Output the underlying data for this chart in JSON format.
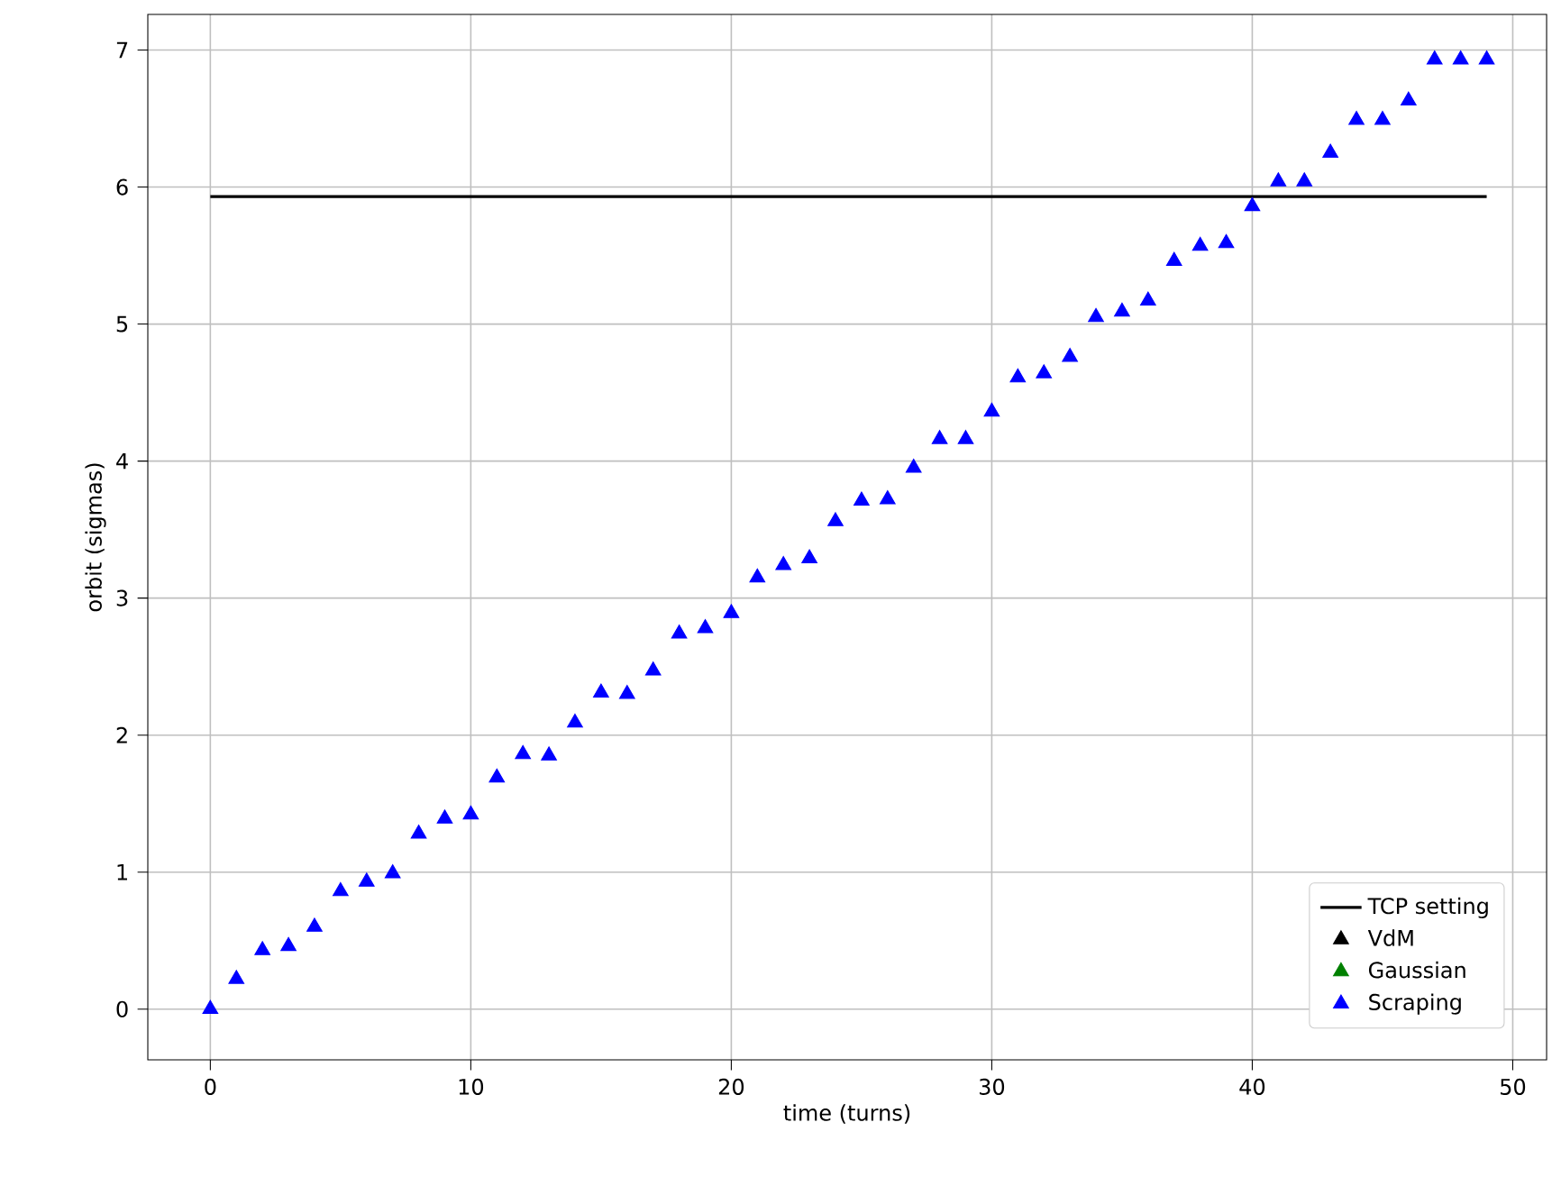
{
  "chart_data": {
    "type": "scatter",
    "xlabel": "time (turns)",
    "ylabel": "orbit (sigmas)",
    "x": [
      0,
      1,
      2,
      3,
      4,
      5,
      6,
      7,
      8,
      9,
      10,
      11,
      12,
      13,
      14,
      15,
      16,
      17,
      18,
      19,
      20,
      21,
      22,
      23,
      24,
      25,
      26,
      27,
      28,
      29,
      30,
      31,
      32,
      33,
      34,
      35,
      36,
      37,
      38,
      39,
      40,
      41,
      42,
      43,
      44,
      45,
      46,
      47,
      48,
      49
    ],
    "xlim": [
      -2.4,
      51.3
    ],
    "ylim": [
      -0.37,
      7.26
    ],
    "xticks": [
      0,
      10,
      20,
      30,
      40,
      50
    ],
    "yticks": [
      0,
      1,
      2,
      3,
      4,
      5,
      6,
      7
    ],
    "grid": true,
    "legend": "bottom right",
    "marker": "triangle",
    "series": [
      {
        "name": "TCP setting",
        "type": "line",
        "marker": "none",
        "color": "#000000",
        "x": [
          0,
          49
        ],
        "values": [
          5.93,
          5.93
        ]
      },
      {
        "name": "VdM",
        "color": "#000000",
        "values": [
          null,
          null,
          null,
          null,
          null,
          null,
          null,
          null,
          null,
          null,
          null,
          null,
          null,
          null,
          null,
          null,
          null,
          null,
          null,
          null,
          null,
          null,
          null,
          null,
          null,
          null,
          null,
          null,
          null,
          null,
          null,
          null,
          null,
          null,
          null,
          null,
          null,
          null,
          null,
          null,
          null,
          null,
          null,
          null,
          null,
          null,
          null,
          null,
          null,
          null
        ]
      },
      {
        "name": "Gaussian",
        "color": "#008000",
        "values": [
          null,
          null,
          null,
          null,
          null,
          null,
          null,
          null,
          null,
          null,
          null,
          null,
          null,
          null,
          null,
          null,
          null,
          null,
          null,
          null,
          null,
          null,
          null,
          null,
          null,
          null,
          null,
          null,
          null,
          null,
          null,
          null,
          null,
          null,
          null,
          null,
          null,
          null,
          null,
          null,
          null,
          null,
          null,
          null,
          null,
          null,
          null,
          null,
          null,
          null
        ]
      },
      {
        "name": "Scraping",
        "color": "#0000ff",
        "values": [
          0,
          0.22,
          0.43,
          0.46,
          0.6,
          0.86,
          0.93,
          0.99,
          1.28,
          1.39,
          1.42,
          1.69,
          1.86,
          1.85,
          2.09,
          2.31,
          2.3,
          2.47,
          2.74,
          2.78,
          2.89,
          3.15,
          3.24,
          3.29,
          3.56,
          3.71,
          3.72,
          3.95,
          4.16,
          4.16,
          4.36,
          4.61,
          4.64,
          4.76,
          5.05,
          5.09,
          5.17,
          5.46,
          5.57,
          5.59,
          5.86,
          6.04,
          6.04,
          6.25,
          6.49,
          6.49,
          6.63,
          6.93,
          6.93,
          6.93
        ]
      }
    ]
  }
}
